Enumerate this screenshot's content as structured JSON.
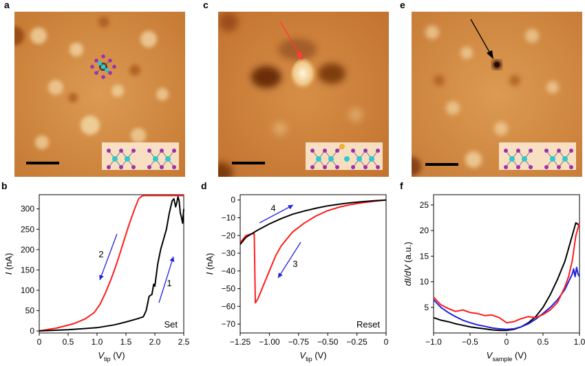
{
  "panel_labels": {
    "a": "a",
    "b": "b",
    "c": "c",
    "d": "d",
    "e": "e",
    "f": "f"
  },
  "colors": {
    "stm_base": "#d08a3e",
    "stm_light": "#f6e0b0",
    "stm_dark": "#6a2c08",
    "red": "#ff1a1a",
    "black": "#000000",
    "blue": "#1f1fe0",
    "arrow_red": "#ff3b3b",
    "mo_atom": "#2ec8d0",
    "s_atom": "#9b2fb0",
    "au_atom": "#f0b030"
  },
  "icons": [
    "scale-bar",
    "atomic-structure-inset",
    "pointer-arrow"
  ],
  "chart_data": [
    {
      "id": "b",
      "type": "line",
      "title": "",
      "xlabel_main": "V",
      "xlabel_sub": "tip",
      "xlabel_unit": "(V)",
      "ylabel_main": "I",
      "ylabel_unit": "(nA)",
      "xlim": [
        0,
        2.5
      ],
      "ylim": [
        -5,
        335
      ],
      "x_ticks": [
        0,
        0.5,
        1.0,
        1.5,
        2.0,
        2.5
      ],
      "x_tick_labels": [
        "0",
        "0.5",
        "1.0",
        "1.5",
        "2.0",
        "2.5"
      ],
      "y_ticks": [
        0,
        50,
        100,
        150,
        200,
        250,
        300
      ],
      "y_tick_labels": [
        "0",
        "50",
        "100",
        "150",
        "200",
        "250",
        "300"
      ],
      "corner_label": "Set",
      "arrow_labels": [
        "2",
        "1"
      ],
      "series": [
        {
          "color": "red",
          "x": [
            0,
            0.3,
            0.6,
            0.8,
            0.95,
            1.05,
            1.15,
            1.25,
            1.35,
            1.45,
            1.55,
            1.65,
            1.72,
            1.78,
            1.82,
            2.0,
            2.3,
            2.5
          ],
          "y": [
            0,
            7,
            18,
            30,
            45,
            65,
            95,
            130,
            170,
            215,
            260,
            300,
            325,
            332,
            333,
            333,
            333,
            333
          ]
        },
        {
          "color": "black",
          "x": [
            0,
            0.5,
            1.0,
            1.3,
            1.5,
            1.7,
            1.8,
            1.85,
            1.9,
            1.95,
            1.98,
            2.0,
            2.05,
            2.1,
            2.15,
            2.2,
            2.25,
            2.3,
            2.33,
            2.36,
            2.38,
            2.4,
            2.42,
            2.44,
            2.46,
            2.48,
            2.5
          ],
          "y": [
            0,
            3,
            8,
            15,
            22,
            30,
            35,
            50,
            85,
            90,
            115,
            110,
            165,
            200,
            225,
            250,
            290,
            320,
            325,
            305,
            315,
            330,
            320,
            290,
            280,
            265,
            300
          ]
        }
      ]
    },
    {
      "id": "d",
      "type": "line",
      "title": "",
      "xlabel_main": "V",
      "xlabel_sub": "tip",
      "xlabel_unit": "(V)",
      "ylabel_main": "I",
      "ylabel_unit": "(nA)",
      "xlim": [
        -1.25,
        0
      ],
      "ylim": [
        -75,
        3
      ],
      "x_ticks": [
        -1.25,
        -1.0,
        -0.75,
        -0.5,
        -0.25,
        0
      ],
      "x_tick_labels": [
        "−1.25",
        "−1.00",
        "−0.75",
        "−0.50",
        "−0.25",
        "0"
      ],
      "y_ticks": [
        0,
        -10,
        -20,
        -30,
        -40,
        -50,
        -60,
        -70
      ],
      "y_tick_labels": [
        "0",
        "−10",
        "−20",
        "−30",
        "−40",
        "−50",
        "−60",
        "−70"
      ],
      "corner_label": "Reset",
      "arrow_labels": [
        "4",
        "3"
      ],
      "series": [
        {
          "color": "red",
          "x": [
            -1.25,
            -1.2,
            -1.15,
            -1.13,
            -1.12,
            -1.1,
            -1.05,
            -1.0,
            -0.95,
            -0.9,
            -0.85,
            -0.8,
            -0.7,
            -0.6,
            -0.5,
            -0.4,
            -0.3,
            -0.2,
            -0.1,
            0
          ],
          "y": [
            -24,
            -20,
            -19,
            -19,
            -58,
            -56,
            -48,
            -40,
            -32,
            -26,
            -22,
            -18,
            -13,
            -9,
            -6,
            -4,
            -2.5,
            -1.5,
            -0.7,
            0
          ]
        },
        {
          "color": "black",
          "x": [
            -1.25,
            -1.2,
            -1.1,
            -1.0,
            -0.9,
            -0.8,
            -0.7,
            -0.6,
            -0.5,
            -0.4,
            -0.3,
            -0.2,
            -0.1,
            0
          ],
          "y": [
            -25,
            -21,
            -17,
            -13.5,
            -10.5,
            -8,
            -6.2,
            -4.6,
            -3.3,
            -2.3,
            -1.5,
            -0.9,
            -0.4,
            0
          ]
        }
      ]
    },
    {
      "id": "f",
      "type": "line",
      "title": "",
      "xlabel_main": "V",
      "xlabel_sub": "sample",
      "xlabel_unit": "(V)",
      "ylabel_main": "dI/dV",
      "ylabel_unit": "(a.u.)",
      "xlim": [
        -1.0,
        1.0
      ],
      "ylim": [
        0,
        27
      ],
      "x_ticks": [
        -1.0,
        -0.5,
        0,
        0.5,
        1.0
      ],
      "x_tick_labels": [
        "−1.0",
        "−0.5",
        "0",
        "0.5",
        "1.0"
      ],
      "y_ticks": [
        5,
        10,
        15,
        20,
        25
      ],
      "y_tick_labels": [
        "5",
        "10",
        "15",
        "20",
        "25"
      ],
      "series": [
        {
          "color": "black",
          "x": [
            -1.0,
            -0.9,
            -0.8,
            -0.7,
            -0.6,
            -0.5,
            -0.4,
            -0.3,
            -0.2,
            -0.1,
            0,
            0.1,
            0.2,
            0.3,
            0.4,
            0.5,
            0.6,
            0.7,
            0.8,
            0.85,
            0.9,
            0.95,
            1.0
          ],
          "y": [
            3,
            2.5,
            2.2,
            1.8,
            1.5,
            1.2,
            1.0,
            0.8,
            0.6,
            0.5,
            0.5,
            0.7,
            1.2,
            2.0,
            3.2,
            5,
            7.5,
            10.5,
            14,
            16.5,
            19,
            21.5,
            21
          ]
        },
        {
          "color": "blue",
          "x": [
            -1.0,
            -0.9,
            -0.8,
            -0.7,
            -0.6,
            -0.5,
            -0.4,
            -0.3,
            -0.2,
            -0.1,
            0,
            0.1,
            0.2,
            0.3,
            0.4,
            0.5,
            0.6,
            0.7,
            0.8,
            0.85,
            0.9,
            0.92,
            0.94,
            0.96,
            0.98,
            1.0
          ],
          "y": [
            6.5,
            5,
            4,
            3.2,
            2.5,
            2.0,
            1.6,
            1.3,
            1.0,
            0.8,
            0.7,
            0.8,
            1.2,
            1.8,
            2.7,
            3.8,
            5,
            6.5,
            8.5,
            10,
            11.5,
            12.5,
            11,
            12.8,
            11.5,
            11
          ]
        },
        {
          "color": "red",
          "x": [
            -1.0,
            -0.9,
            -0.8,
            -0.7,
            -0.6,
            -0.5,
            -0.4,
            -0.3,
            -0.2,
            -0.1,
            0,
            0.1,
            0.2,
            0.3,
            0.4,
            0.5,
            0.6,
            0.7,
            0.8,
            0.85,
            0.9,
            0.95,
            1.0
          ],
          "y": [
            7,
            5.5,
            4.8,
            4.2,
            4.5,
            4.0,
            3.8,
            3.4,
            3.5,
            3.0,
            2.0,
            2.2,
            2.8,
            3.2,
            3.0,
            3.6,
            4.5,
            6.0,
            9.0,
            11,
            14,
            19,
            21.5
          ]
        }
      ]
    }
  ]
}
